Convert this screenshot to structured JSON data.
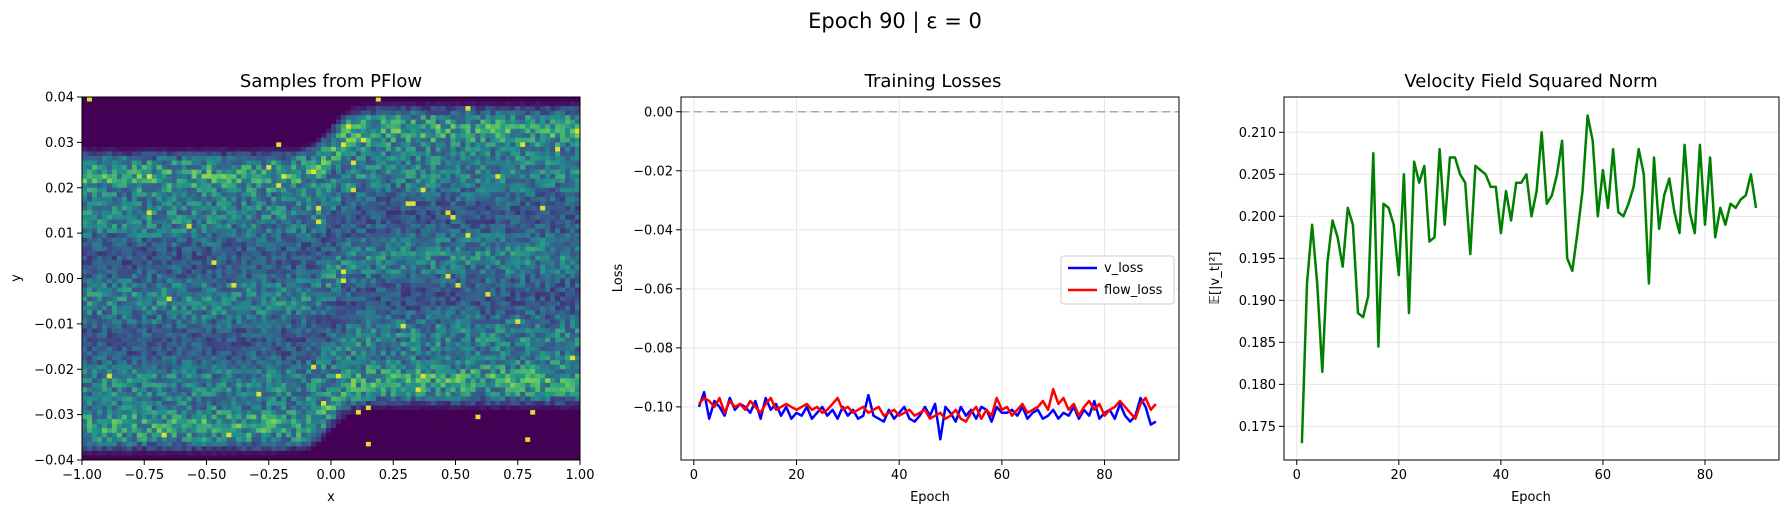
{
  "figure": {
    "suptitle": "Epoch 90 | ε = 0"
  },
  "chart_data": [
    {
      "type": "heatmap",
      "title": "Samples from PFlow",
      "xlabel": "x",
      "ylabel": "y",
      "xlim": [
        -1.0,
        1.0
      ],
      "ylim": [
        -0.04,
        0.04
      ],
      "xticks": [
        -1.0,
        -0.75,
        -0.5,
        -0.25,
        0.0,
        0.25,
        0.5,
        0.75,
        1.0
      ],
      "xtick_labels": [
        "−1.00",
        "−0.75",
        "−0.50",
        "−0.25",
        "0.00",
        "0.25",
        "0.50",
        "0.75",
        "1.00"
      ],
      "yticks": [
        -0.04,
        -0.03,
        -0.02,
        -0.01,
        0.0,
        0.01,
        0.02,
        0.03,
        0.04
      ],
      "ytick_labels": [
        "−0.04",
        "−0.03",
        "−0.02",
        "−0.01",
        "0.00",
        "0.01",
        "0.02",
        "0.03",
        "0.04"
      ],
      "colormap": [
        "#440154",
        "#3b528b",
        "#21918c",
        "#5ec962",
        "#fde725"
      ],
      "grid": false
    },
    {
      "type": "line",
      "title": "Training Losses",
      "xlabel": "Epoch",
      "ylabel": "Loss",
      "xlim": [
        -2.5,
        94.5
      ],
      "ylim": [
        -0.118,
        0.005
      ],
      "xticks": [
        0,
        20,
        40,
        60,
        80
      ],
      "xtick_labels": [
        "0",
        "20",
        "40",
        "60",
        "80"
      ],
      "yticks": [
        0.0,
        -0.02,
        -0.04,
        -0.06,
        -0.08,
        -0.1
      ],
      "ytick_labels": [
        "0.00",
        "−0.02",
        "−0.04",
        "−0.06",
        "−0.08",
        "−0.10"
      ],
      "hline": {
        "y": 0.0,
        "color": "#aaaaaa",
        "style": "dashed"
      },
      "grid": true,
      "legend_position": "center-right",
      "series": [
        {
          "name": "v_loss",
          "color": "#0000ff",
          "x": [
            1,
            2,
            3,
            4,
            5,
            6,
            7,
            8,
            9,
            10,
            11,
            12,
            13,
            14,
            15,
            16,
            17,
            18,
            19,
            20,
            21,
            22,
            23,
            24,
            25,
            26,
            27,
            28,
            29,
            30,
            31,
            32,
            33,
            34,
            35,
            36,
            37,
            38,
            39,
            40,
            41,
            42,
            43,
            44,
            45,
            46,
            47,
            48,
            49,
            50,
            51,
            52,
            53,
            54,
            55,
            56,
            57,
            58,
            59,
            60,
            61,
            62,
            63,
            64,
            65,
            66,
            67,
            68,
            69,
            70,
            71,
            72,
            73,
            74,
            75,
            76,
            77,
            78,
            79,
            80,
            81,
            82,
            83,
            84,
            85,
            86,
            87,
            88,
            89,
            90
          ],
          "values": [
            -0.1,
            -0.095,
            -0.104,
            -0.098,
            -0.1,
            -0.103,
            -0.097,
            -0.101,
            -0.099,
            -0.1,
            -0.102,
            -0.098,
            -0.104,
            -0.097,
            -0.101,
            -0.099,
            -0.103,
            -0.1,
            -0.104,
            -0.102,
            -0.103,
            -0.1,
            -0.104,
            -0.102,
            -0.1,
            -0.103,
            -0.101,
            -0.104,
            -0.1,
            -0.103,
            -0.101,
            -0.104,
            -0.103,
            -0.096,
            -0.103,
            -0.104,
            -0.105,
            -0.101,
            -0.104,
            -0.102,
            -0.1,
            -0.104,
            -0.105,
            -0.103,
            -0.1,
            -0.103,
            -0.099,
            -0.111,
            -0.1,
            -0.102,
            -0.105,
            -0.1,
            -0.103,
            -0.101,
            -0.104,
            -0.1,
            -0.101,
            -0.105,
            -0.1,
            -0.102,
            -0.102,
            -0.101,
            -0.103,
            -0.1,
            -0.104,
            -0.102,
            -0.101,
            -0.104,
            -0.103,
            -0.101,
            -0.104,
            -0.102,
            -0.103,
            -0.1,
            -0.104,
            -0.101,
            -0.103,
            -0.098,
            -0.104,
            -0.102,
            -0.101,
            -0.104,
            -0.099,
            -0.103,
            -0.105,
            -0.103,
            -0.097,
            -0.1,
            -0.106,
            -0.105
          ]
        },
        {
          "name": "flow_loss",
          "color": "#ff0000",
          "x": [
            1,
            2,
            3,
            4,
            5,
            6,
            7,
            8,
            9,
            10,
            11,
            12,
            13,
            14,
            15,
            16,
            17,
            18,
            19,
            20,
            21,
            22,
            23,
            24,
            25,
            26,
            27,
            28,
            29,
            30,
            31,
            32,
            33,
            34,
            35,
            36,
            37,
            38,
            39,
            40,
            41,
            42,
            43,
            44,
            45,
            46,
            47,
            48,
            49,
            50,
            51,
            52,
            53,
            54,
            55,
            56,
            57,
            58,
            59,
            60,
            61,
            62,
            63,
            64,
            65,
            66,
            67,
            68,
            69,
            70,
            71,
            72,
            73,
            74,
            75,
            76,
            77,
            78,
            79,
            80,
            81,
            82,
            83,
            84,
            85,
            86,
            87,
            88,
            89,
            90
          ],
          "values": [
            -0.099,
            -0.097,
            -0.098,
            -0.1,
            -0.097,
            -0.102,
            -0.098,
            -0.1,
            -0.099,
            -0.101,
            -0.098,
            -0.1,
            -0.102,
            -0.099,
            -0.097,
            -0.101,
            -0.1,
            -0.099,
            -0.1,
            -0.101,
            -0.1,
            -0.099,
            -0.101,
            -0.1,
            -0.102,
            -0.101,
            -0.099,
            -0.097,
            -0.101,
            -0.1,
            -0.102,
            -0.101,
            -0.1,
            -0.102,
            -0.101,
            -0.1,
            -0.103,
            -0.102,
            -0.101,
            -0.103,
            -0.102,
            -0.101,
            -0.103,
            -0.102,
            -0.101,
            -0.104,
            -0.103,
            -0.102,
            -0.104,
            -0.103,
            -0.101,
            -0.104,
            -0.105,
            -0.102,
            -0.1,
            -0.104,
            -0.101,
            -0.103,
            -0.097,
            -0.101,
            -0.1,
            -0.103,
            -0.101,
            -0.099,
            -0.102,
            -0.101,
            -0.1,
            -0.098,
            -0.101,
            -0.094,
            -0.099,
            -0.097,
            -0.101,
            -0.099,
            -0.103,
            -0.1,
            -0.098,
            -0.101,
            -0.099,
            -0.103,
            -0.101,
            -0.1,
            -0.098,
            -0.1,
            -0.102,
            -0.104,
            -0.099,
            -0.097,
            -0.101,
            -0.099
          ]
        }
      ]
    },
    {
      "type": "line",
      "title": "Velocity Field Squared Norm",
      "xlabel": "Epoch",
      "ylabel": "𝔼[|v_t|²]",
      "xlim": [
        -2.5,
        94.5
      ],
      "ylim": [
        0.171,
        0.2142
      ],
      "xticks": [
        0,
        20,
        40,
        60,
        80
      ],
      "xtick_labels": [
        "0",
        "20",
        "40",
        "60",
        "80"
      ],
      "yticks": [
        0.175,
        0.18,
        0.185,
        0.19,
        0.195,
        0.2,
        0.205,
        0.21
      ],
      "ytick_labels": [
        "0.175",
        "0.180",
        "0.185",
        "0.190",
        "0.195",
        "0.200",
        "0.205",
        "0.210"
      ],
      "grid": true,
      "series": [
        {
          "color": "#008000",
          "x": [
            1,
            2,
            3,
            4,
            5,
            6,
            7,
            8,
            9,
            10,
            11,
            12,
            13,
            14,
            15,
            16,
            17,
            18,
            19,
            20,
            21,
            22,
            23,
            24,
            25,
            26,
            27,
            28,
            29,
            30,
            31,
            32,
            33,
            34,
            35,
            36,
            37,
            38,
            39,
            40,
            41,
            42,
            43,
            44,
            45,
            46,
            47,
            48,
            49,
            50,
            51,
            52,
            53,
            54,
            55,
            56,
            57,
            58,
            59,
            60,
            61,
            62,
            63,
            64,
            65,
            66,
            67,
            68,
            69,
            70,
            71,
            72,
            73,
            74,
            75,
            76,
            77,
            78,
            79,
            80,
            81,
            82,
            83,
            84,
            85,
            86,
            87,
            88,
            89,
            90
          ],
          "values": [
            0.173,
            0.192,
            0.199,
            0.192,
            0.1815,
            0.1945,
            0.1995,
            0.1975,
            0.194,
            0.201,
            0.199,
            0.1885,
            0.188,
            0.1905,
            0.2075,
            0.1845,
            0.2015,
            0.201,
            0.199,
            0.193,
            0.205,
            0.1885,
            0.2065,
            0.204,
            0.206,
            0.197,
            0.1975,
            0.208,
            0.199,
            0.207,
            0.207,
            0.205,
            0.204,
            0.1955,
            0.206,
            0.2055,
            0.205,
            0.2035,
            0.2035,
            0.198,
            0.203,
            0.1995,
            0.204,
            0.204,
            0.205,
            0.2,
            0.203,
            0.21,
            0.2015,
            0.2025,
            0.205,
            0.209,
            0.195,
            0.1935,
            0.198,
            0.203,
            0.212,
            0.209,
            0.2,
            0.2055,
            0.201,
            0.208,
            0.2005,
            0.2,
            0.2015,
            0.2035,
            0.208,
            0.205,
            0.192,
            0.207,
            0.1985,
            0.2025,
            0.2045,
            0.2005,
            0.198,
            0.2085,
            0.2005,
            0.198,
            0.2085,
            0.199,
            0.207,
            0.1975,
            0.201,
            0.199,
            0.2015,
            0.201,
            0.202,
            0.2025,
            0.205,
            0.201
          ]
        }
      ]
    }
  ]
}
